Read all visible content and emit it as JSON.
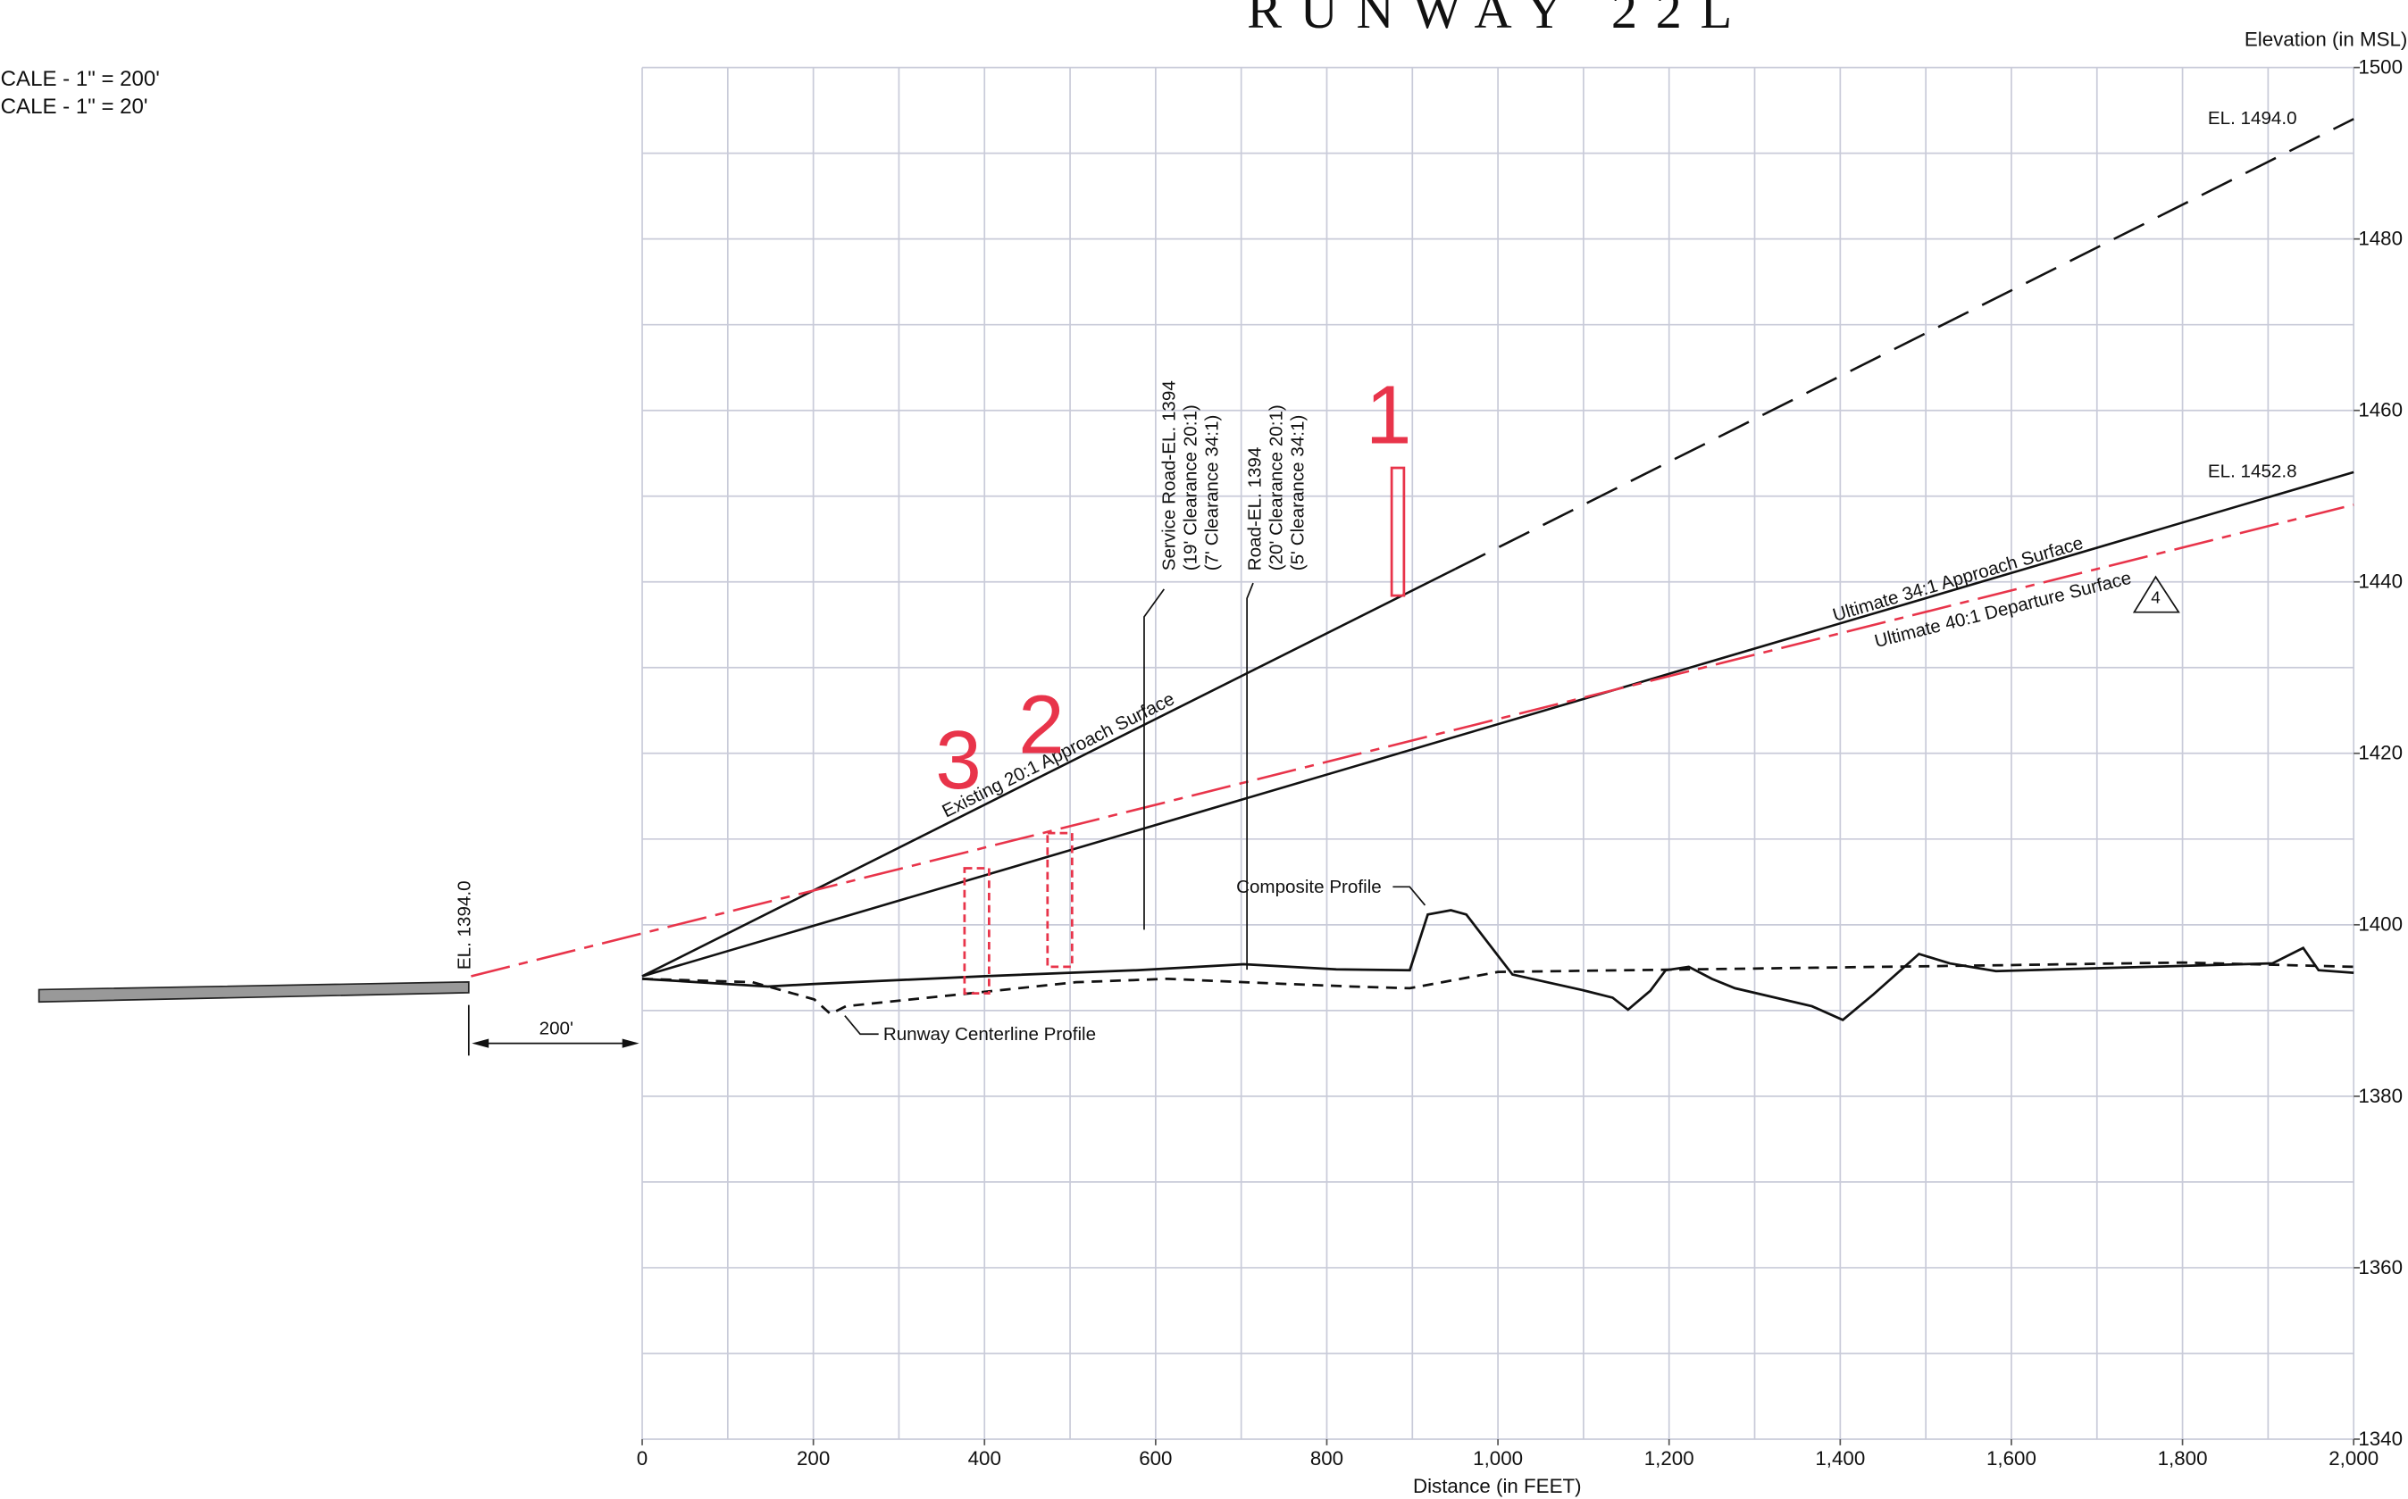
{
  "chart_data": {
    "type": "line",
    "title": "RUNWAY 22L",
    "scale_notes": [
      "CALE - 1\" = 200'",
      "CALE - 1\" = 20'"
    ],
    "xlabel": "Distance (in FEET)",
    "ylabel": "Elevation (in MSL)",
    "xlim": [
      0,
      2000
    ],
    "ylim": [
      1340,
      1500
    ],
    "xticks": [
      0,
      200,
      400,
      600,
      800,
      {
        "value": 1000,
        "label": "1,000"
      },
      {
        "value": 1200,
        "label": "1,200"
      },
      {
        "value": 1400,
        "label": "1,400"
      },
      {
        "value": 1600,
        "label": "1,600"
      },
      {
        "value": 1800,
        "label": "1,800"
      },
      {
        "value": 2000,
        "label": "2,000"
      }
    ],
    "yticks": [
      1340,
      1360,
      1380,
      1400,
      1420,
      1440,
      1460,
      1480,
      1500
    ],
    "xgrid": [
      0,
      100,
      200,
      300,
      400,
      500,
      600,
      700,
      800,
      900,
      1000,
      1100,
      1200,
      1300,
      1400,
      1500,
      1600,
      1700,
      1800,
      1900,
      2000
    ],
    "ygrid": [
      1340,
      1350,
      1360,
      1370,
      1380,
      1390,
      1400,
      1410,
      1420,
      1430,
      1440,
      1450,
      1460,
      1470,
      1480,
      1490,
      1500
    ],
    "grid": true,
    "grid_color": "#c9cbd9",
    "series": [
      {
        "name": "Existing 20:1 Approach Surface",
        "color": "#111111",
        "x": [
          0,
          950,
          2000
        ],
        "values": [
          1394,
          1441.5,
          1494
        ],
        "segment_styles": [
          "solid",
          "dashed"
        ]
      },
      {
        "name": "Ultimate 34:1 Approach Surface",
        "color": "#111111",
        "x": [
          0,
          2000
        ],
        "values": [
          1394,
          1452.8
        ],
        "segment_styles": [
          "solid"
        ]
      },
      {
        "name": "Ultimate 40:1 Departure Surface",
        "color": "#e8344a",
        "x": [
          -200,
          2000
        ],
        "values": [
          1394,
          1449
        ],
        "segment_styles": [
          "dashdot"
        ]
      },
      {
        "name": "Composite Profile",
        "color": "#111111",
        "x": [
          0,
          147,
          201,
          398,
          578,
          703,
          811,
          897,
          918,
          945,
          963,
          1017,
          1098,
          1134,
          1152,
          1178,
          1196,
          1223,
          1250,
          1277,
          1367,
          1403,
          1439,
          1492,
          1528,
          1582,
          1761,
          1905,
          1941,
          1959,
          2000
        ],
        "values": [
          1393.7,
          1392.8,
          1393.1,
          1394.0,
          1394.7,
          1395.4,
          1394.8,
          1394.7,
          1401.2,
          1401.7,
          1401.2,
          1394.2,
          1392.4,
          1391.5,
          1390.1,
          1392.3,
          1394.7,
          1395.1,
          1393.7,
          1392.6,
          1390.5,
          1388.9,
          1391.9,
          1396.6,
          1395.5,
          1394.6,
          1395.1,
          1395.5,
          1397.3,
          1394.7,
          1394.4
        ],
        "segment_styles": [
          "solid"
        ]
      },
      {
        "name": "Runway Centerline Profile",
        "color": "#111111",
        "x": [
          0,
          129,
          201,
          220,
          238,
          363,
          507,
          614,
          703,
          829,
          897,
          1000,
          1300,
          1600,
          1800,
          2000
        ],
        "values": [
          1393.7,
          1393.3,
          1391.3,
          1389.6,
          1390.5,
          1391.8,
          1393.3,
          1393.7,
          1393.3,
          1392.8,
          1392.6,
          1394.5,
          1394.9,
          1395.3,
          1395.6,
          1395.1
        ],
        "segment_styles": [
          "dashed"
        ]
      }
    ],
    "obstructions": [
      {
        "label": "1",
        "x": 883,
        "bottom": 1438.4,
        "top": 1453.3
      },
      {
        "label": "2",
        "x": 488,
        "bottom": 1395.1,
        "top": 1410.7
      },
      {
        "label": "3",
        "x": 391,
        "bottom": 1392,
        "top": 1406.6
      }
    ],
    "obstruction_color": "#e8344a",
    "annotations": [
      "EL. 1394.0",
      "200'",
      "EL. 1494.0",
      "EL. 1452.8",
      "Service Road-EL. 1394",
      "(19' Clearance 20:1)",
      "(7' Clearance 34:1)",
      "Road-EL. 1394",
      "(20' Clearance 20:1)",
      "(5' Clearance 34:1)",
      "4"
    ]
  }
}
